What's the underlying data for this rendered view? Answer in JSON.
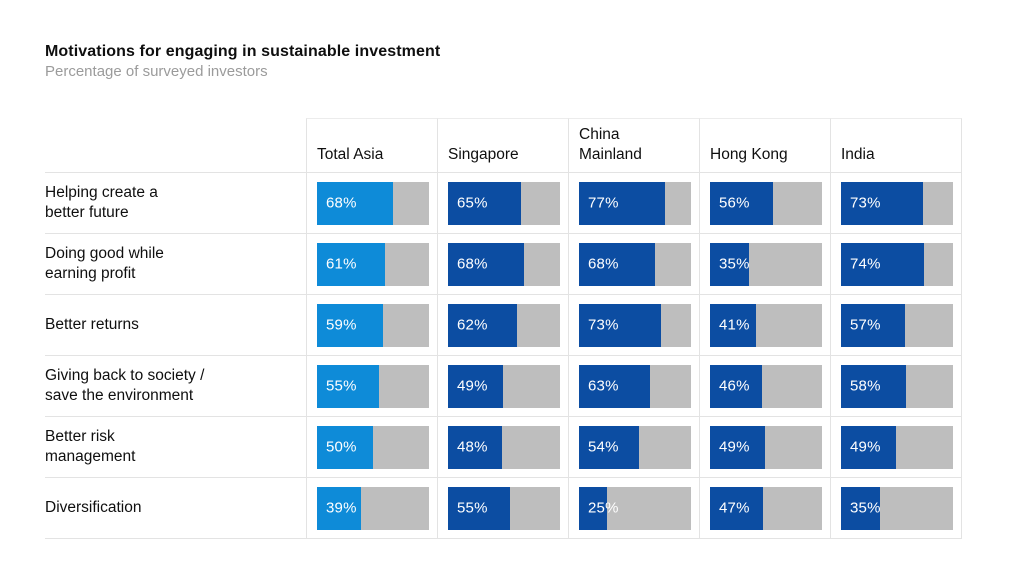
{
  "title": "Motivations for engaging in sustainable investment",
  "subtitle": "Percentage of surveyed investors",
  "colors": {
    "highlight_bar": "#0E8BD8",
    "bar": "#0C4DA2",
    "track": "#BEBEBE",
    "grid_line": "#E3E3E3",
    "subtitle_text": "#9B9B9B"
  },
  "chart_data": {
    "type": "bar",
    "title": "Motivations for engaging in sustainable investment",
    "subtitle": "Percentage of surveyed investors",
    "unit": "%",
    "value_range": [
      0,
      100
    ],
    "legend_position": "none",
    "highlight_column": "Total Asia",
    "columns": [
      "Total Asia",
      "Singapore",
      "China\nMainland",
      "Hong Kong",
      "India"
    ],
    "rows": [
      {
        "label": "Helping create a\nbetter future",
        "values": [
          68,
          65,
          77,
          56,
          73
        ]
      },
      {
        "label": "Doing good while\nearning profit",
        "values": [
          61,
          68,
          68,
          35,
          74
        ]
      },
      {
        "label": "Better returns",
        "values": [
          59,
          62,
          73,
          41,
          57
        ]
      },
      {
        "label": "Giving back to society /\nsave the environment",
        "values": [
          55,
          49,
          63,
          46,
          58
        ]
      },
      {
        "label": "Better risk\nmanagement",
        "values": [
          50,
          48,
          54,
          49,
          49
        ]
      },
      {
        "label": "Diversification",
        "values": [
          39,
          55,
          25,
          47,
          35
        ]
      }
    ]
  }
}
